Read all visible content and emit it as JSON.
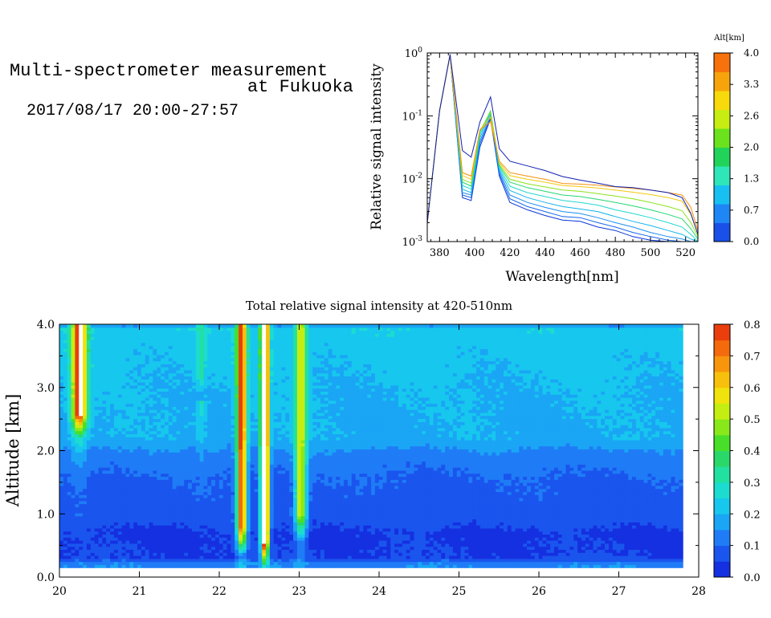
{
  "header": {
    "title_line1": "Multi-spectrometer measurement",
    "title_line2": "at Fukuoka",
    "datetime": "2017/08/17 20:00-27:57"
  },
  "chart_data": [
    {
      "type": "line",
      "xlabel": "Wavelength[nm]",
      "ylabel": "Relative signal intensity",
      "xlim": [
        373,
        527
      ],
      "ylim": [
        0.001,
        1
      ],
      "yscale": "log",
      "x_ticks": [
        380,
        400,
        420,
        440,
        460,
        480,
        500,
        520
      ],
      "y_ticks": [
        {
          "value": 0.001,
          "base": "10",
          "exp": "-3"
        },
        {
          "value": 0.01,
          "base": "10",
          "exp": "-2"
        },
        {
          "value": 0.1,
          "base": "10",
          "exp": "-1"
        },
        {
          "value": 1,
          "base": "10",
          "exp": "0"
        }
      ],
      "grid": false,
      "x": [
        373,
        380,
        386,
        393,
        398,
        403,
        409,
        414,
        420,
        430,
        440,
        450,
        460,
        470,
        480,
        490,
        500,
        510,
        518,
        523,
        527
      ],
      "colorbar": {
        "label": "Alt[km]",
        "tick_labels": [
          "0.0",
          "0.7",
          "1.3",
          "2.0",
          "2.6",
          "3.3",
          "4.0"
        ],
        "colors": [
          "#1a4fe8",
          "#1f86f5",
          "#17c0f0",
          "#2ee6b8",
          "#22d35a",
          "#6ae21e",
          "#c6ec12",
          "#f7d90c",
          "#f7a40c",
          "#f7720c"
        ]
      },
      "series": [
        {
          "color": "#0a35d8",
          "values": [
            0.002,
            0.12,
            0.92,
            0.005,
            0.0045,
            0.032,
            0.09,
            0.011,
            0.0042,
            0.0032,
            0.0026,
            0.0022,
            0.0021,
            0.0017,
            0.0015,
            0.0012,
            0.00105,
            0.001,
            0.001,
            0.001,
            0.001
          ]
        },
        {
          "color": "#1565e8",
          "values": [
            0.002,
            0.12,
            0.92,
            0.0055,
            0.005,
            0.036,
            0.095,
            0.012,
            0.0048,
            0.0036,
            0.003,
            0.0025,
            0.0024,
            0.002,
            0.0017,
            0.0014,
            0.0012,
            0.00105,
            0.001,
            0.001,
            0.001
          ]
        },
        {
          "color": "#1c8cf2",
          "values": [
            0.002,
            0.12,
            0.92,
            0.006,
            0.0055,
            0.04,
            0.1,
            0.013,
            0.0055,
            0.0042,
            0.0035,
            0.003,
            0.0028,
            0.0024,
            0.002,
            0.0017,
            0.0014,
            0.0012,
            0.0011,
            0.001,
            0.001
          ]
        },
        {
          "color": "#12b4ee",
          "values": [
            0.002,
            0.12,
            0.92,
            0.0068,
            0.006,
            0.045,
            0.11,
            0.014,
            0.0065,
            0.005,
            0.0042,
            0.0036,
            0.0033,
            0.003,
            0.0025,
            0.0021,
            0.0018,
            0.0015,
            0.0013,
            0.0011,
            0.001
          ]
        },
        {
          "color": "#20d8d0",
          "values": [
            0.002,
            0.12,
            0.92,
            0.0078,
            0.0068,
            0.05,
            0.115,
            0.015,
            0.0076,
            0.006,
            0.0052,
            0.0045,
            0.0042,
            0.0038,
            0.0032,
            0.0028,
            0.0024,
            0.002,
            0.0017,
            0.0013,
            0.001
          ]
        },
        {
          "color": "#22d870",
          "values": [
            0.002,
            0.12,
            0.92,
            0.0088,
            0.0076,
            0.055,
            0.12,
            0.016,
            0.0088,
            0.0072,
            0.0063,
            0.0055,
            0.0052,
            0.0047,
            0.0042,
            0.0037,
            0.0032,
            0.0027,
            0.0023,
            0.0016,
            0.0011
          ]
        },
        {
          "color": "#8ae21c",
          "values": [
            0.002,
            0.12,
            0.92,
            0.0098,
            0.0085,
            0.058,
            0.115,
            0.017,
            0.0098,
            0.0083,
            0.0074,
            0.0066,
            0.0063,
            0.0058,
            0.0053,
            0.0048,
            0.0042,
            0.0036,
            0.0031,
            0.002,
            0.0012
          ]
        },
        {
          "color": "#f2c90c",
          "values": [
            0.002,
            0.12,
            0.92,
            0.0112,
            0.0098,
            0.06,
            0.095,
            0.018,
            0.0112,
            0.0098,
            0.0088,
            0.0078,
            0.0075,
            0.0071,
            0.0066,
            0.0061,
            0.0056,
            0.005,
            0.0044,
            0.0027,
            0.0013
          ]
        },
        {
          "color": "#f7900c",
          "values": [
            0.002,
            0.12,
            0.92,
            0.0125,
            0.011,
            0.06,
            0.08,
            0.019,
            0.0125,
            0.011,
            0.0098,
            0.0084,
            0.0082,
            0.0079,
            0.0074,
            0.007,
            0.0066,
            0.006,
            0.0055,
            0.0035,
            0.0015
          ]
        },
        {
          "color": "#1020b0",
          "values": [
            0.002,
            0.12,
            0.95,
            0.028,
            0.022,
            0.08,
            0.2,
            0.03,
            0.019,
            0.016,
            0.0135,
            0.0108,
            0.0095,
            0.0085,
            0.0075,
            0.0072,
            0.0066,
            0.006,
            0.005,
            0.0028,
            0.0013
          ]
        }
      ]
    },
    {
      "type": "heatmap",
      "title": "Total relative signal intensity at 420-510nm",
      "xlabel": "",
      "ylabel": "Altitude [km]",
      "xlim": [
        20,
        28
      ],
      "ylim": [
        0,
        4
      ],
      "data_x_end": 27.8,
      "data_y_start": 0.15,
      "x_ticks": [
        "20",
        "21",
        "22",
        "23",
        "24",
        "25",
        "26",
        "27",
        "28"
      ],
      "y_ticks": [
        "0.0",
        "1.0",
        "2.0",
        "3.0",
        "4.0"
      ],
      "colorbar": {
        "vmin": 0,
        "vmax": 0.8,
        "tick_labels": [
          "0.0",
          "0.1",
          "0.2",
          "0.3",
          "0.4",
          "0.5",
          "0.6",
          "0.7",
          "0.8"
        ],
        "colors": [
          "#1530e0",
          "#1a55ee",
          "#1f7cf6",
          "#1aa5f5",
          "#17c7ee",
          "#1cdcd0",
          "#22e0a0",
          "#2ad86a",
          "#48df2a",
          "#88e81a",
          "#c4ee12",
          "#f0e20c",
          "#f7c00c",
          "#f7960c",
          "#f46a0c",
          "#ea3e0c"
        ]
      },
      "background_profile": [
        [
          0,
          0.02
        ],
        [
          0.2,
          0.16
        ],
        [
          0.3,
          0.05
        ],
        [
          0.7,
          0.04
        ],
        [
          0.9,
          0.07
        ],
        [
          1.5,
          0.09
        ],
        [
          1.95,
          0.13
        ],
        [
          2.2,
          0.19
        ],
        [
          3.0,
          0.2
        ],
        [
          3.7,
          0.22
        ],
        [
          3.95,
          0.24
        ],
        [
          4.0,
          0.1
        ]
      ],
      "plumes": [
        {
          "time": 20.25,
          "width": 0.09,
          "bottom": 2.2,
          "peak": 0.85
        },
        {
          "time": 21.77,
          "width": 0.05,
          "bottom": 2.8,
          "peak": 0.35
        },
        {
          "time": 22.28,
          "width": 0.06,
          "bottom": 0.4,
          "peak": 0.78
        },
        {
          "time": 22.57,
          "width": 0.05,
          "bottom": 0.2,
          "peak": 0.95
        },
        {
          "time": 23.02,
          "width": 0.07,
          "bottom": 0.6,
          "peak": 0.55
        }
      ]
    }
  ]
}
